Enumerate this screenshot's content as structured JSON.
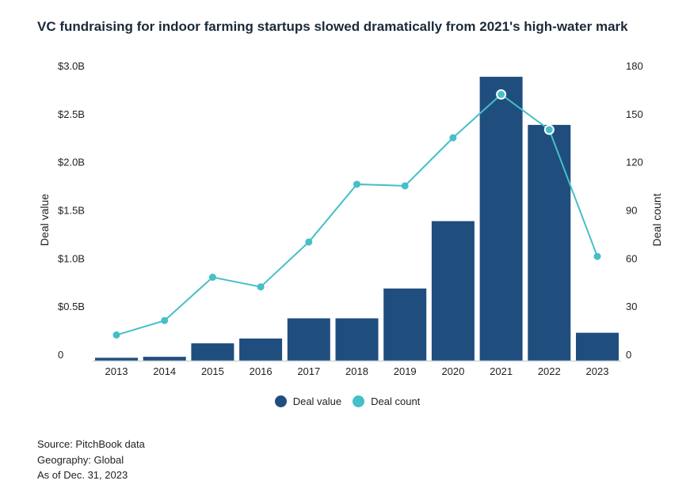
{
  "chart_data": {
    "type": "bar",
    "title": "VC fundraising for indoor farming startups slowed dramatically from 2021's high-water mark",
    "categories": [
      "2013",
      "2014",
      "2015",
      "2016",
      "2017",
      "2018",
      "2019",
      "2020",
      "2021",
      "2022",
      "2023"
    ],
    "series": [
      {
        "name": "Deal value",
        "type": "bar",
        "axis": "left",
        "unit": "B USD",
        "color": "#1f4e7e",
        "values": [
          0.03,
          0.04,
          0.18,
          0.23,
          0.44,
          0.44,
          0.75,
          1.45,
          2.95,
          2.45,
          0.29
        ]
      },
      {
        "name": "Deal count",
        "type": "line",
        "axis": "right",
        "color": "#45bfc8",
        "values": [
          16,
          25,
          52,
          46,
          74,
          110,
          109,
          139,
          166,
          144,
          65
        ],
        "highlighted": [
          "2021",
          "2022"
        ]
      }
    ],
    "ylabel": "Deal value",
    "ylabel_right": "Deal count",
    "ylim": [
      0,
      3.0
    ],
    "ylim_right": [
      0,
      180
    ],
    "yticks": [
      "0",
      "$0.5B",
      "$1.0B",
      "$1.5B",
      "$2.0B",
      "$2.5B",
      "$3.0B"
    ],
    "yticks_right": [
      "0",
      "30",
      "60",
      "90",
      "120",
      "150",
      "180"
    ],
    "grid": false,
    "legend": "bottom"
  },
  "notes": [
    "Source: PitchBook data",
    "Geography: Global",
    "As of Dec. 31, 2023"
  ]
}
